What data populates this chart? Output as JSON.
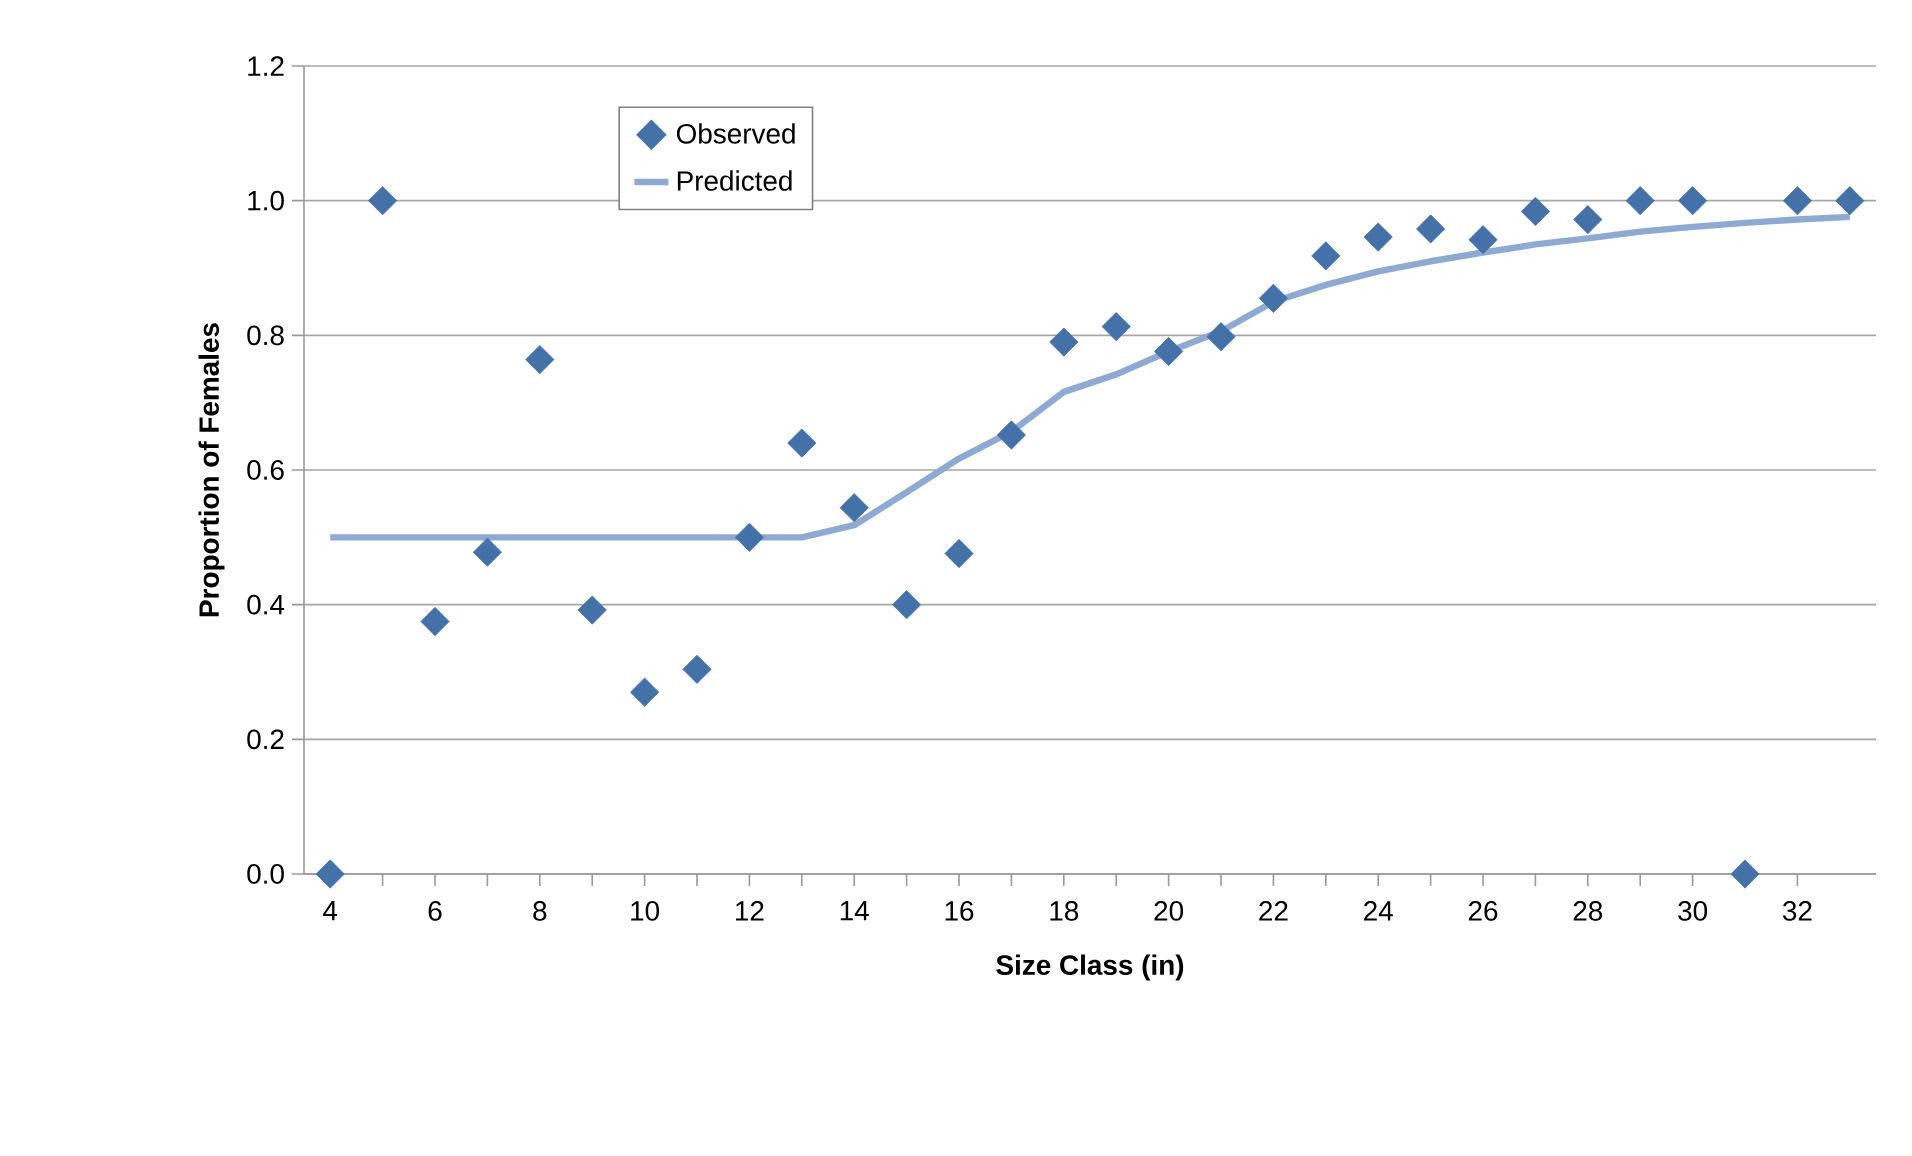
{
  "chart_data": {
    "type": "scatter",
    "xlabel": "Size Class (in)",
    "ylabel": "Proportion of Females",
    "xlim": [
      3.5,
      33.5
    ],
    "xticks": [
      4,
      6,
      8,
      10,
      12,
      14,
      16,
      18,
      20,
      22,
      24,
      26,
      28,
      30,
      32
    ],
    "ylim": [
      0,
      1.2
    ],
    "yticks": [
      {
        "value": 0,
        "label": "0.0"
      },
      {
        "value": 0.2,
        "label": "0.2"
      },
      {
        "value": 0.4,
        "label": "0.4"
      },
      {
        "value": 0.6,
        "label": "0.6"
      },
      {
        "value": 0.8,
        "label": "0.8"
      },
      {
        "value": 1.0,
        "label": "1.0"
      },
      {
        "value": 1.2,
        "label": "1.2"
      }
    ],
    "grid": "y",
    "legend": "top left",
    "series": [
      {
        "name": "Observed",
        "marker": "diamond",
        "color": "#4472a8",
        "x": [
          4,
          5,
          6,
          7,
          8,
          9,
          10,
          11,
          12,
          13,
          14,
          15,
          16,
          17,
          18,
          19,
          20,
          21,
          22,
          23,
          24,
          25,
          26,
          27,
          28,
          29,
          30,
          31,
          32,
          33
        ],
        "values": [
          0,
          1.0,
          0.375,
          0.478,
          0.764,
          0.392,
          0.27,
          0.304,
          0.5,
          0.64,
          0.544,
          0.4,
          0.476,
          0.652,
          0.79,
          0.813,
          0.776,
          0.798,
          0.855,
          0.918,
          0.946,
          0.958,
          0.942,
          0.984,
          0.972,
          1.0,
          1.0,
          0,
          1.0,
          1.0
        ]
      },
      {
        "name": "Predicted",
        "type": "line",
        "marker": "none",
        "line_style": "solid",
        "color": "#8eaad2",
        "x": [
          4,
          5,
          6,
          7,
          8,
          9,
          10,
          11,
          12,
          13,
          14,
          15,
          16,
          17,
          18,
          19,
          20,
          21,
          22,
          23,
          24,
          25,
          26,
          27,
          28,
          29,
          30,
          31,
          32,
          33
        ],
        "values": [
          0.5,
          0.5,
          0.5,
          0.5,
          0.5,
          0.5,
          0.5,
          0.5,
          0.5,
          0.5,
          0.518,
          0.567,
          0.617,
          0.657,
          0.716,
          0.742,
          0.776,
          0.806,
          0.85,
          0.875,
          0.895,
          0.91,
          0.923,
          0.935,
          0.944,
          0.954,
          0.961,
          0.967,
          0.972,
          0.976
        ]
      }
    ]
  }
}
